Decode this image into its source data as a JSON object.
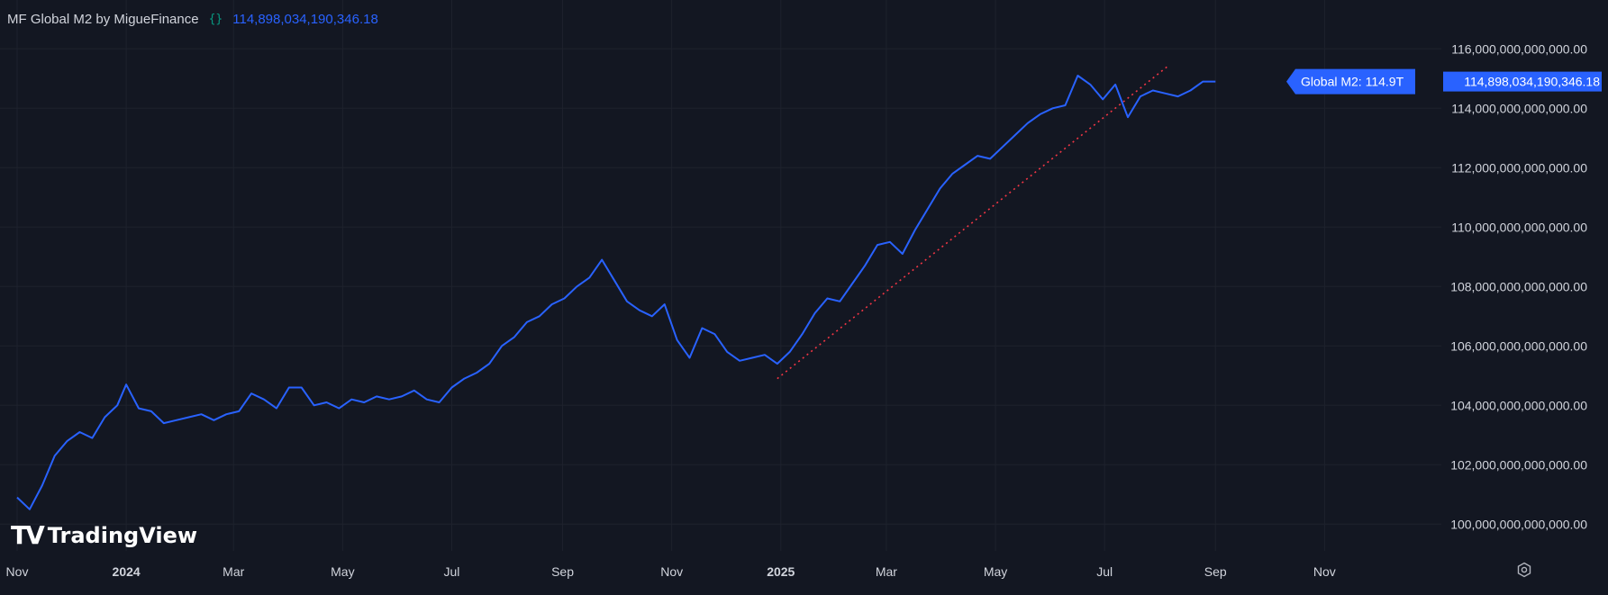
{
  "header": {
    "indicator_title": "MF Global M2 by MigueFinance",
    "brace_label": "{}",
    "last_value": "114,898,034,190,346.18"
  },
  "branding": {
    "logo_mark": "TV",
    "logo_text": "TradingView"
  },
  "colors": {
    "background": "#131722",
    "line": "#2962ff",
    "trend": "#f23645",
    "grid": "#1e222d",
    "text": "#d1d4dc",
    "legend_brace": "#089981"
  },
  "icons": {
    "settings": "gear-icon"
  },
  "chart_data": {
    "type": "line",
    "series": [
      {
        "name": "Global M2",
        "x": [
          "2023-11-01",
          "2023-11-08",
          "2023-11-15",
          "2023-11-22",
          "2023-11-29",
          "2023-12-06",
          "2023-12-13",
          "2023-12-20",
          "2023-12-27",
          "2024-01-01",
          "2024-01-08",
          "2024-01-15",
          "2024-01-22",
          "2024-01-29",
          "2024-02-05",
          "2024-02-12",
          "2024-02-19",
          "2024-02-26",
          "2024-03-04",
          "2024-03-11",
          "2024-03-18",
          "2024-03-25",
          "2024-04-01",
          "2024-04-08",
          "2024-04-15",
          "2024-04-22",
          "2024-04-29",
          "2024-05-06",
          "2024-05-13",
          "2024-05-20",
          "2024-05-27",
          "2024-06-03",
          "2024-06-10",
          "2024-06-17",
          "2024-06-24",
          "2024-07-01",
          "2024-07-08",
          "2024-07-15",
          "2024-07-22",
          "2024-07-29",
          "2024-08-05",
          "2024-08-12",
          "2024-08-19",
          "2024-08-26",
          "2024-09-02",
          "2024-09-09",
          "2024-09-16",
          "2024-09-23",
          "2024-09-30",
          "2024-10-07",
          "2024-10-14",
          "2024-10-21",
          "2024-10-28",
          "2024-11-04",
          "2024-11-11",
          "2024-11-18",
          "2024-11-25",
          "2024-12-02",
          "2024-12-09",
          "2024-12-16",
          "2024-12-23",
          "2024-12-30",
          "2025-01-06",
          "2025-01-13",
          "2025-01-20",
          "2025-01-27",
          "2025-02-03",
          "2025-02-10",
          "2025-02-17",
          "2025-02-24",
          "2025-03-03",
          "2025-03-10",
          "2025-03-17",
          "2025-03-24",
          "2025-03-31",
          "2025-04-07",
          "2025-04-14",
          "2025-04-21",
          "2025-04-28",
          "2025-05-05",
          "2025-05-12",
          "2025-05-19",
          "2025-05-26",
          "2025-06-02",
          "2025-06-09",
          "2025-06-16",
          "2025-06-23",
          "2025-06-30",
          "2025-07-07",
          "2025-07-14",
          "2025-07-21",
          "2025-07-28",
          "2025-08-04",
          "2025-08-11",
          "2025-08-18",
          "2025-08-25",
          "2025-09-01"
        ],
        "values": [
          100.9,
          100.5,
          101.3,
          102.3,
          102.8,
          103.1,
          102.9,
          103.6,
          104.0,
          104.7,
          103.9,
          103.8,
          103.4,
          103.5,
          103.6,
          103.7,
          103.5,
          103.7,
          103.8,
          104.4,
          104.2,
          103.9,
          104.6,
          104.6,
          104.0,
          104.1,
          103.9,
          104.2,
          104.1,
          104.3,
          104.2,
          104.3,
          104.5,
          104.2,
          104.1,
          104.6,
          104.9,
          105.1,
          105.4,
          106.0,
          106.3,
          106.8,
          107.0,
          107.4,
          107.6,
          108.0,
          108.3,
          108.9,
          108.2,
          107.5,
          107.2,
          107.0,
          107.4,
          106.2,
          105.6,
          106.6,
          106.4,
          105.8,
          105.5,
          105.6,
          105.7,
          105.4,
          105.8,
          106.4,
          107.1,
          107.6,
          107.5,
          108.1,
          108.7,
          109.4,
          109.5,
          109.1,
          109.9,
          110.6,
          111.3,
          111.8,
          112.1,
          112.4,
          112.3,
          112.7,
          113.1,
          113.5,
          113.8,
          114.0,
          114.1,
          115.1,
          114.8,
          114.3,
          114.8,
          113.7,
          114.4,
          114.6,
          114.5,
          114.4,
          114.6,
          114.9,
          114.9
        ]
      }
    ],
    "trendline": {
      "start": [
        "2024-12-30",
        104.9
      ],
      "end": [
        "2025-08-05",
        115.4
      ]
    },
    "y_axis": {
      "ticks": [
        100,
        102,
        104,
        106,
        108,
        110,
        112,
        114,
        116
      ],
      "tick_labels": [
        "100,000,000,000,000.00",
        "102,000,000,000,000.00",
        "104,000,000,000,000.00",
        "106,000,000,000,000.00",
        "108,000,000,000,000.00",
        "110,000,000,000,000.00",
        "112,000,000,000,000.00",
        "114,000,000,000,000.00",
        "116,000,000,000,000.00"
      ],
      "unit_scale": "trillions",
      "range": [
        99.1,
        117.1
      ],
      "position": "right"
    },
    "x_axis": {
      "ticks": [
        {
          "date": "2023-11-01",
          "label": "Nov",
          "bold": false
        },
        {
          "date": "2024-01-01",
          "label": "2024",
          "bold": true
        },
        {
          "date": "2024-03-01",
          "label": "Mar",
          "bold": false
        },
        {
          "date": "2024-05-01",
          "label": "May",
          "bold": false
        },
        {
          "date": "2024-07-01",
          "label": "Jul",
          "bold": false
        },
        {
          "date": "2024-09-01",
          "label": "Sep",
          "bold": false
        },
        {
          "date": "2024-11-01",
          "label": "Nov",
          "bold": false
        },
        {
          "date": "2025-01-01",
          "label": "2025",
          "bold": true
        },
        {
          "date": "2025-03-01",
          "label": "Mar",
          "bold": false
        },
        {
          "date": "2025-05-01",
          "label": "May",
          "bold": false
        },
        {
          "date": "2025-07-01",
          "label": "Jul",
          "bold": false
        },
        {
          "date": "2025-09-01",
          "label": "Sep",
          "bold": false
        },
        {
          "date": "2025-11-01",
          "label": "Nov",
          "bold": false
        }
      ],
      "range": [
        "2023-11-01",
        "2025-11-26"
      ]
    },
    "callout_label": "Global M2: 114.9T",
    "price_label": "114,898,034,190,346.18",
    "grid": true
  }
}
